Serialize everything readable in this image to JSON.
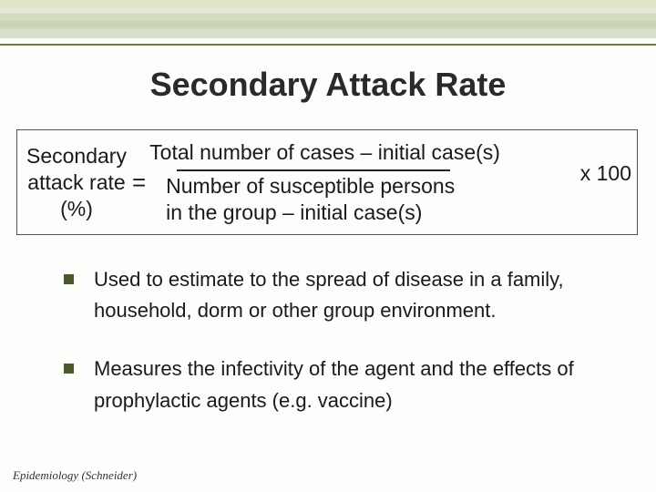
{
  "colors": {
    "accent": "#6b7a4a",
    "bullet": "#4a5a2a",
    "text": "#1a1a1a",
    "background": "#fdfdfb"
  },
  "title": "Secondary Attack Rate",
  "formula": {
    "lhs_line1": "Secondary",
    "lhs_line2": "attack rate",
    "lhs_line3": "(%)",
    "equals": "=",
    "numerator": "Total number of cases – initial case(s)",
    "denominator_line1": "Number of susceptible persons",
    "denominator_line2": "in the group – initial case(s)",
    "multiplier": "x 100"
  },
  "bullets": [
    "Used to estimate to the spread of disease in a family, household, dorm or other group environment.",
    "Measures the infectivity of the agent and the effects of prophylactic agents (e.g. vaccine)"
  ],
  "footer": "Epidemiology  (Schneider)"
}
